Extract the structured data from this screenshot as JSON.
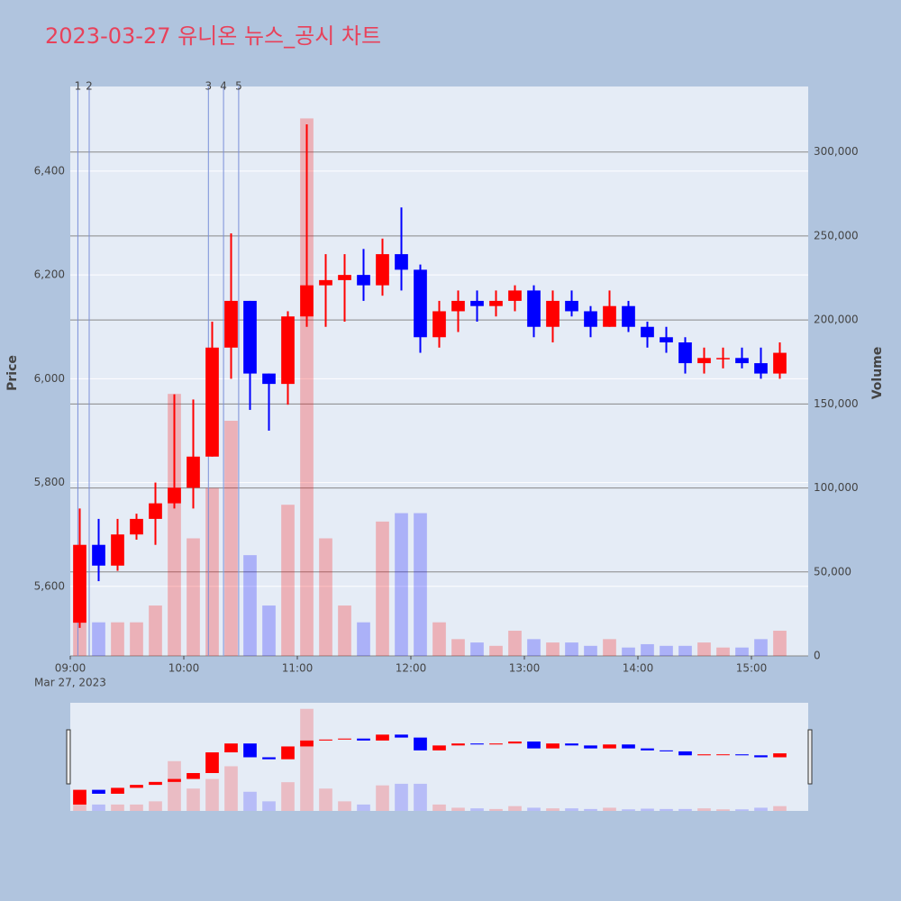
{
  "chart_data": {
    "type": "candlestick",
    "title": "2023-03-27 유니온 뉴스_공시 차트",
    "ylabel": "Price",
    "y2label": "Volume",
    "x": [
      "09:00",
      "09:10",
      "09:20",
      "09:30",
      "09:40",
      "09:50",
      "10:00",
      "10:10",
      "10:20",
      "10:30",
      "10:40",
      "10:50",
      "11:00",
      "11:10",
      "11:20",
      "11:30",
      "11:40",
      "11:50",
      "12:00",
      "12:10",
      "12:20",
      "12:30",
      "12:40",
      "12:50",
      "13:00",
      "13:10",
      "13:20",
      "13:30",
      "13:40",
      "13:50",
      "14:00",
      "14:10",
      "14:20",
      "14:30",
      "14:40",
      "14:50",
      "15:00",
      "15:10"
    ],
    "open": [
      5530,
      5680,
      5640,
      5700,
      5730,
      5760,
      5790,
      5850,
      6060,
      6150,
      6010,
      5990,
      6120,
      6180,
      6190,
      6200,
      6180,
      6240,
      6210,
      6080,
      6130,
      6150,
      6140,
      6150,
      6170,
      6100,
      6150,
      6130,
      6100,
      6140,
      6100,
      6080,
      6070,
      6030,
      6040,
      6040,
      6030,
      6010
    ],
    "high": [
      5750,
      5730,
      5730,
      5740,
      5800,
      5970,
      5960,
      6110,
      6280,
      6150,
      6010,
      6130,
      6490,
      6240,
      6240,
      6250,
      6270,
      6330,
      6220,
      6150,
      6170,
      6170,
      6170,
      6180,
      6180,
      6170,
      6170,
      6140,
      6170,
      6150,
      6110,
      6100,
      6080,
      6060,
      6060,
      6060,
      6060,
      6070
    ],
    "low": [
      5520,
      5610,
      5630,
      5690,
      5680,
      5750,
      5750,
      5850,
      6000,
      5940,
      5900,
      5950,
      6100,
      6100,
      6110,
      6150,
      6160,
      6170,
      6050,
      6060,
      6090,
      6110,
      6120,
      6130,
      6080,
      6070,
      6120,
      6080,
      6100,
      6090,
      6060,
      6050,
      6010,
      6010,
      6020,
      6020,
      6000,
      6000
    ],
    "close": [
      5680,
      5640,
      5700,
      5730,
      5760,
      5790,
      5850,
      6060,
      6150,
      6010,
      5990,
      6120,
      6180,
      6190,
      6200,
      6180,
      6240,
      6210,
      6080,
      6130,
      6150,
      6140,
      6150,
      6170,
      6100,
      6150,
      6130,
      6100,
      6140,
      6100,
      6080,
      6070,
      6030,
      6040,
      6040,
      6030,
      6010,
      6050
    ],
    "volume": [
      50000,
      20000,
      20000,
      20000,
      30000,
      156000,
      70000,
      100000,
      140000,
      60000,
      30000,
      90000,
      320000,
      70000,
      30000,
      20000,
      80000,
      85000,
      85000,
      20000,
      10000,
      8000,
      6000,
      15000,
      10000,
      8000,
      8000,
      6000,
      10000,
      5000,
      7000,
      6000,
      6000,
      8000,
      5000,
      5000,
      10000,
      15000
    ],
    "up_color": "#ff0000",
    "down_color": "#0000ff",
    "xlim": [
      "09:00",
      "15:30"
    ],
    "xticks": [
      "09:00",
      "10:00",
      "11:00",
      "12:00",
      "13:00",
      "14:00",
      "15:00"
    ],
    "x_sublabel": "Mar 27, 2023",
    "ylim": [
      5466,
      6563
    ],
    "yticks": [
      {
        "value": 5600,
        "label": "5,600"
      },
      {
        "value": 5800,
        "label": "5,800"
      },
      {
        "value": 6000,
        "label": "6,000"
      },
      {
        "value": 6200,
        "label": "6,200"
      },
      {
        "value": 6400,
        "label": "6,400"
      }
    ],
    "y2lim": [
      0,
      339000
    ],
    "y2ticks": [
      0,
      {
        "value": 50000,
        "label": "50,000"
      },
      {
        "value": 100000,
        "label": "100,000"
      },
      {
        "value": 150000,
        "label": "150,000"
      },
      {
        "value": 200000,
        "label": "200,000"
      },
      {
        "value": 250000,
        "label": "250,000"
      },
      {
        "value": 300000,
        "label": "300,000"
      }
    ],
    "news": [
      {
        "time": "09:04",
        "label": "1"
      },
      {
        "time": "09:10",
        "label": "2"
      },
      {
        "time": "10:13",
        "label": "3"
      },
      {
        "time": "10:21",
        "label": "4"
      },
      {
        "time": "10:29",
        "label": "5"
      }
    ]
  }
}
